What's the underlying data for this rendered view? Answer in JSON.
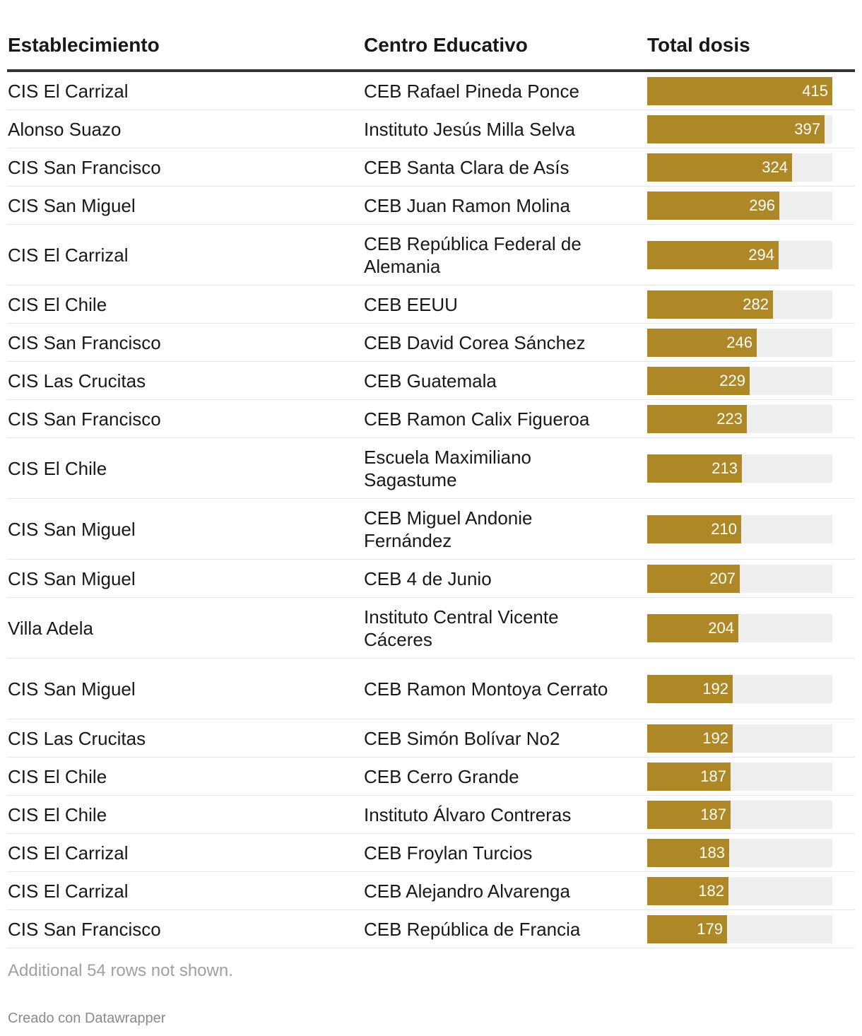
{
  "columns": {
    "establecimiento": "Establecimiento",
    "centro": "Centro Educativo",
    "dosis": "Total dosis"
  },
  "colors": {
    "bar": "#ae8727",
    "track": "#eeeeee"
  },
  "chart_data": {
    "type": "table",
    "title": "",
    "value_column": "Total dosis",
    "scale_max": 415,
    "rows": [
      {
        "establecimiento": "CIS El Carrizal",
        "centro": "CEB Rafael Pineda Ponce",
        "dosis": 415
      },
      {
        "establecimiento": "Alonso Suazo",
        "centro": "Instituto Jesús Milla Selva",
        "dosis": 397
      },
      {
        "establecimiento": "CIS San Francisco",
        "centro": "CEB Santa Clara de Asís",
        "dosis": 324
      },
      {
        "establecimiento": "CIS San Miguel",
        "centro": "CEB Juan Ramon Molina",
        "dosis": 296
      },
      {
        "establecimiento": "CIS El Carrizal",
        "centro": "CEB República Federal de Alemania",
        "dosis": 294
      },
      {
        "establecimiento": "CIS El Chile",
        "centro": "CEB EEUU",
        "dosis": 282
      },
      {
        "establecimiento": "CIS San Francisco",
        "centro": "CEB David Corea Sánchez",
        "dosis": 246
      },
      {
        "establecimiento": "CIS Las Crucitas",
        "centro": "CEB Guatemala",
        "dosis": 229
      },
      {
        "establecimiento": "CIS San Francisco",
        "centro": "CEB Ramon Calix Figueroa",
        "dosis": 223
      },
      {
        "establecimiento": "CIS El Chile",
        "centro": "Escuela Maximiliano Sagastume",
        "dosis": 213
      },
      {
        "establecimiento": "CIS San Miguel",
        "centro": "CEB Miguel Andonie Fernández",
        "dosis": 210
      },
      {
        "establecimiento": "CIS San Miguel",
        "centro": "CEB 4 de Junio",
        "dosis": 207
      },
      {
        "establecimiento": "Villa Adela",
        "centro": "Instituto Central Vicente Cáceres",
        "dosis": 204
      },
      {
        "establecimiento": "CIS San Miguel",
        "centro": "CEB Ramon Montoya Cerrato",
        "dosis": 192
      },
      {
        "establecimiento": "CIS Las Crucitas",
        "centro": "CEB Simón Bolívar No2",
        "dosis": 192
      },
      {
        "establecimiento": "CIS El Chile",
        "centro": "CEB Cerro Grande",
        "dosis": 187
      },
      {
        "establecimiento": "CIS El Chile",
        "centro": "Instituto Álvaro Contreras",
        "dosis": 187
      },
      {
        "establecimiento": "CIS El Carrizal",
        "centro": "CEB Froylan Turcios",
        "dosis": 183
      },
      {
        "establecimiento": "CIS El Carrizal",
        "centro": "CEB Alejandro Alvarenga",
        "dosis": 182
      },
      {
        "establecimiento": "CIS San Francisco",
        "centro": "CEB República de Francia",
        "dosis": 179
      }
    ]
  },
  "footer": {
    "note": "Additional 54 rows not shown.",
    "credit": "Creado con Datawrapper"
  }
}
